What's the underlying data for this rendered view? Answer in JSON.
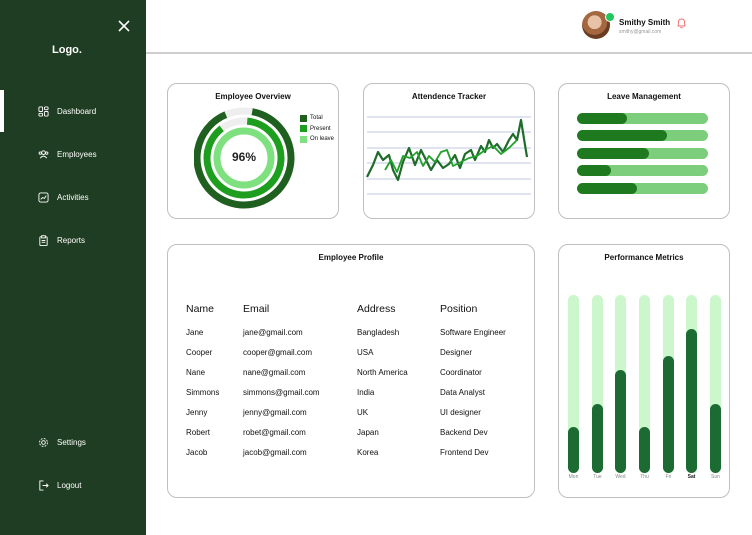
{
  "sidebar": {
    "logo": "Logo.",
    "items": [
      {
        "label": "Dashboard",
        "icon": "dashboard-icon"
      },
      {
        "label": "Employees",
        "icon": "users-icon"
      },
      {
        "label": "Activities",
        "icon": "activity-icon"
      },
      {
        "label": "Reports",
        "icon": "clipboard-icon"
      }
    ],
    "bottom_items": [
      {
        "label": "Settings",
        "icon": "gear-icon"
      },
      {
        "label": "Logout",
        "icon": "logout-icon"
      }
    ]
  },
  "header": {
    "user_name": "Smithy Smith",
    "user_email": "smithy@gmail.com"
  },
  "overview": {
    "title": "Employee Overview",
    "percent": "96%",
    "legend": [
      {
        "label": "Total",
        "color": "#1f5f1f"
      },
      {
        "label": "Present",
        "color": "#1e9e1e"
      },
      {
        "label": "On leave",
        "color": "#7ee07e"
      }
    ]
  },
  "tracker": {
    "title": "Attendence Tracker"
  },
  "leave": {
    "title": "Leave Management",
    "bars": [
      0.38,
      0.69,
      0.55,
      0.26,
      0.46
    ]
  },
  "profile": {
    "title": "Employee Profile",
    "columns": [
      "Name",
      "Email",
      "Address",
      "Position"
    ],
    "rows": [
      [
        "Jane",
        "jane@gmail.com",
        "Bangladesh",
        "Software Engineer"
      ],
      [
        "Cooper",
        "cooper@gmail.com",
        "USA",
        "Designer"
      ],
      [
        "Nane",
        "nane@gmail.com",
        "North America",
        "Coordinator"
      ],
      [
        "Simmons",
        "simmons@gmail.com",
        "India",
        "Data Analyst"
      ],
      [
        "Jenny",
        "jenny@gmail.com",
        "UK",
        "UI designer"
      ],
      [
        "Robert",
        "robet@gmail.com",
        "Japan",
        "Backend Dev"
      ],
      [
        "Jacob",
        "jacob@gmail.com",
        "Korea",
        "Frontend Dev"
      ]
    ]
  },
  "performance": {
    "title": "Performance Metrics",
    "days": [
      "Mon",
      "Tue",
      "Wed",
      "Thu",
      "Fri",
      "Sat",
      "Sun"
    ],
    "values": [
      0.26,
      0.39,
      0.58,
      0.26,
      0.66,
      0.81,
      0.39
    ],
    "highlight_day": "Sat"
  }
}
